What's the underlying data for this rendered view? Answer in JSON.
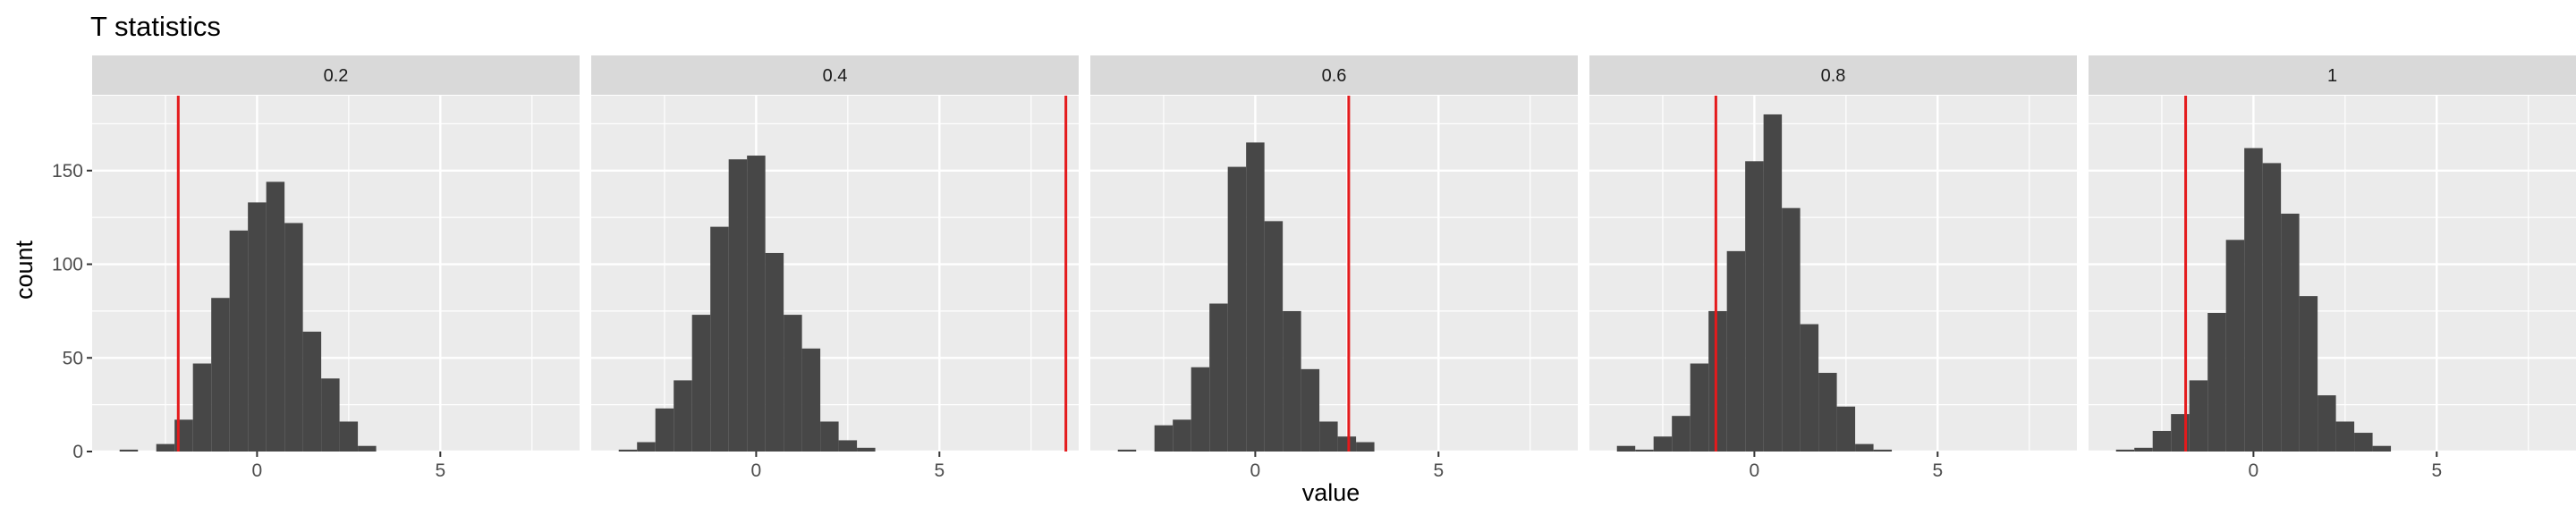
{
  "chart_data": {
    "type": "bar",
    "title": "T statistics",
    "xlabel": "value",
    "ylabel": "count",
    "xlim": [
      -4.5,
      8.8
    ],
    "ylim": [
      0,
      190
    ],
    "x_ticks": [
      0,
      5
    ],
    "y_ticks": [
      0,
      50,
      100,
      150
    ],
    "grid": true,
    "facet_layout": "1 row, 5 panels",
    "colors": {
      "panel_bg": "#ebebeb",
      "strip_bg": "#d9d9d9",
      "grid": "#ffffff",
      "bars": "#474747",
      "reference_line": "#e41a1c"
    },
    "bin_width": 0.5,
    "facets": [
      {
        "label": "0.2",
        "reference_line": -2.15,
        "bins": [
          {
            "x": -3.5,
            "count": 1
          },
          {
            "x": -2.5,
            "count": 4
          },
          {
            "x": -2.0,
            "count": 17
          },
          {
            "x": -1.5,
            "count": 47
          },
          {
            "x": -1.0,
            "count": 82
          },
          {
            "x": -0.5,
            "count": 118
          },
          {
            "x": 0.0,
            "count": 133
          },
          {
            "x": 0.5,
            "count": 144
          },
          {
            "x": 1.0,
            "count": 122
          },
          {
            "x": 1.5,
            "count": 64
          },
          {
            "x": 2.0,
            "count": 39
          },
          {
            "x": 2.5,
            "count": 16
          },
          {
            "x": 3.0,
            "count": 3
          }
        ]
      },
      {
        "label": "0.4",
        "reference_line": 8.45,
        "bins": [
          {
            "x": -3.5,
            "count": 1
          },
          {
            "x": -3.0,
            "count": 5
          },
          {
            "x": -2.5,
            "count": 23
          },
          {
            "x": -2.0,
            "count": 38
          },
          {
            "x": -1.5,
            "count": 73
          },
          {
            "x": -1.0,
            "count": 120
          },
          {
            "x": -0.5,
            "count": 156
          },
          {
            "x": 0.0,
            "count": 158
          },
          {
            "x": 0.5,
            "count": 106
          },
          {
            "x": 1.0,
            "count": 73
          },
          {
            "x": 1.5,
            "count": 55
          },
          {
            "x": 2.0,
            "count": 16
          },
          {
            "x": 2.5,
            "count": 6
          },
          {
            "x": 3.0,
            "count": 2
          }
        ]
      },
      {
        "label": "0.6",
        "reference_line": 2.55,
        "bins": [
          {
            "x": -3.5,
            "count": 1
          },
          {
            "x": -2.5,
            "count": 14
          },
          {
            "x": -2.0,
            "count": 17
          },
          {
            "x": -1.5,
            "count": 45
          },
          {
            "x": -1.0,
            "count": 79
          },
          {
            "x": -0.5,
            "count": 152
          },
          {
            "x": 0.0,
            "count": 165
          },
          {
            "x": 0.5,
            "count": 123
          },
          {
            "x": 1.0,
            "count": 75
          },
          {
            "x": 1.5,
            "count": 44
          },
          {
            "x": 2.0,
            "count": 16
          },
          {
            "x": 2.5,
            "count": 8
          },
          {
            "x": 3.0,
            "count": 5
          }
        ]
      },
      {
        "label": "0.8",
        "reference_line": -1.05,
        "bins": [
          {
            "x": -3.5,
            "count": 3
          },
          {
            "x": -3.0,
            "count": 1
          },
          {
            "x": -2.5,
            "count": 8
          },
          {
            "x": -2.0,
            "count": 19
          },
          {
            "x": -1.5,
            "count": 47
          },
          {
            "x": -1.0,
            "count": 75
          },
          {
            "x": -0.5,
            "count": 107
          },
          {
            "x": 0.0,
            "count": 155
          },
          {
            "x": 0.5,
            "count": 180
          },
          {
            "x": 1.0,
            "count": 130
          },
          {
            "x": 1.5,
            "count": 68
          },
          {
            "x": 2.0,
            "count": 42
          },
          {
            "x": 2.5,
            "count": 24
          },
          {
            "x": 3.0,
            "count": 4
          },
          {
            "x": 3.5,
            "count": 1
          }
        ]
      },
      {
        "label": "1",
        "reference_line": -1.85,
        "bins": [
          {
            "x": -3.5,
            "count": 1
          },
          {
            "x": -3.0,
            "count": 2
          },
          {
            "x": -2.5,
            "count": 11
          },
          {
            "x": -2.0,
            "count": 20
          },
          {
            "x": -1.5,
            "count": 38
          },
          {
            "x": -1.0,
            "count": 74
          },
          {
            "x": -0.5,
            "count": 113
          },
          {
            "x": 0.0,
            "count": 162
          },
          {
            "x": 0.5,
            "count": 154
          },
          {
            "x": 1.0,
            "count": 127
          },
          {
            "x": 1.5,
            "count": 83
          },
          {
            "x": 2.0,
            "count": 30
          },
          {
            "x": 2.5,
            "count": 16
          },
          {
            "x": 3.0,
            "count": 10
          },
          {
            "x": 3.5,
            "count": 3
          }
        ]
      }
    ]
  }
}
